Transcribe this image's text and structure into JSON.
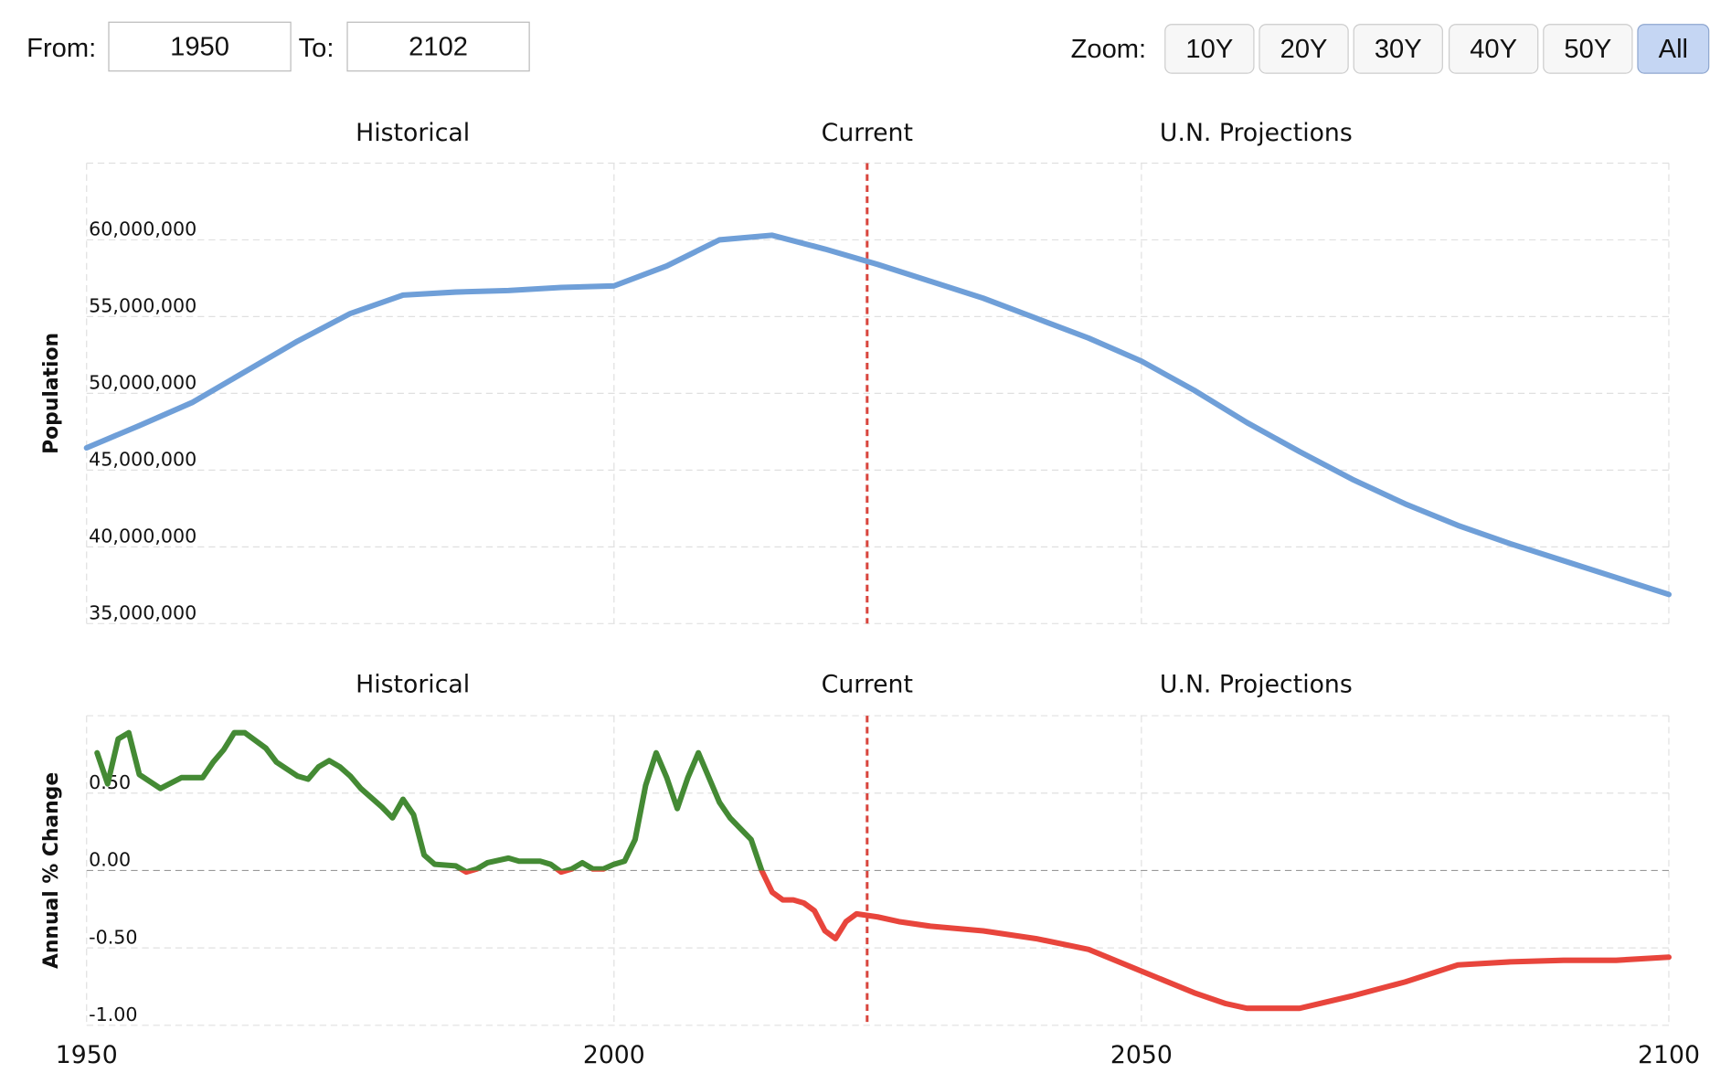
{
  "controls": {
    "from_label": "From:",
    "from_value": "1950",
    "to_label": "To:",
    "to_value": "2102",
    "zoom_label": "Zoom:",
    "zoom_buttons": [
      "10Y",
      "20Y",
      "30Y",
      "40Y",
      "50Y",
      "All"
    ],
    "selected_zoom": 5
  },
  "chart_data": [
    {
      "type": "line",
      "ylabel": "Population",
      "annotations": [
        "Historical",
        "Current",
        "U.N. Projections"
      ],
      "current_year": 2024,
      "current_color": "#d9463e",
      "x": [
        1950,
        1955,
        1960,
        1965,
        1970,
        1975,
        1980,
        1985,
        1990,
        1995,
        2000,
        2005,
        2010,
        2015,
        2020,
        2025,
        2030,
        2035,
        2040,
        2045,
        2050,
        2055,
        2060,
        2065,
        2070,
        2075,
        2080,
        2085,
        2090,
        2095,
        2100
      ],
      "series": [
        {
          "name": "Population",
          "color": "#6f9fd8",
          "values": [
            46450000,
            47900000,
            49400000,
            51400000,
            53400000,
            55200000,
            56400000,
            56600000,
            56700000,
            56900000,
            57000000,
            58300000,
            60000000,
            60300000,
            59400000,
            58400000,
            57300000,
            56200000,
            54900000,
            53600000,
            52100000,
            50200000,
            48100000,
            46200000,
            44400000,
            42800000,
            41400000,
            40200000,
            39100000,
            38000000,
            36900000
          ]
        }
      ],
      "xlim": [
        1950,
        2100
      ],
      "xticks": [
        1950,
        2000,
        2050,
        2100
      ],
      "x_tick_labels": false,
      "ylim": [
        35000000,
        65000000
      ],
      "yticks": [
        {
          "value": 35000000,
          "label": "35,000,000"
        },
        {
          "value": 40000000,
          "label": "40,000,000"
        },
        {
          "value": 45000000,
          "label": "45,000,000"
        },
        {
          "value": 50000000,
          "label": "50,000,000"
        },
        {
          "value": 55000000,
          "label": "55,000,000"
        },
        {
          "value": 60000000,
          "label": "60,000,000"
        }
      ],
      "grid": true
    },
    {
      "type": "signed-line",
      "ylabel": "Annual % Change",
      "annotations": [
        "Historical",
        "Current",
        "U.N. Projections"
      ],
      "current_year": 2024,
      "current_color": "#d9463e",
      "x": [
        1951,
        1952,
        1953,
        1954,
        1955,
        1957,
        1959,
        1961,
        1962,
        1963,
        1964,
        1965,
        1967,
        1968,
        1970,
        1971,
        1972,
        1973,
        1974,
        1975,
        1976,
        1978,
        1979,
        1980,
        1981,
        1982,
        1983,
        1985,
        1986,
        1987,
        1988,
        1990,
        1991,
        1993,
        1994,
        1995,
        1996,
        1997,
        1998,
        1999,
        2000,
        2001,
        2002,
        2003,
        2004,
        2005,
        2006,
        2007,
        2008,
        2009,
        2010,
        2011,
        2012,
        2013,
        2014,
        2015,
        2016,
        2017,
        2018,
        2019,
        2020,
        2021,
        2022,
        2023,
        2025,
        2027,
        2030,
        2035,
        2040,
        2045,
        2050,
        2055,
        2058,
        2060,
        2065,
        2070,
        2075,
        2080,
        2085,
        2090,
        2095,
        2100
      ],
      "series": [
        {
          "name": "Annual % Change",
          "positive_color": "#448a34",
          "negative_color": "#e8453c",
          "values": [
            0.76,
            0.56,
            0.85,
            0.89,
            0.62,
            0.53,
            0.6,
            0.6,
            0.7,
            0.78,
            0.89,
            0.89,
            0.79,
            0.7,
            0.61,
            0.59,
            0.67,
            0.71,
            0.67,
            0.61,
            0.53,
            0.41,
            0.34,
            0.46,
            0.36,
            0.1,
            0.04,
            0.03,
            -0.01,
            0.01,
            0.05,
            0.08,
            0.06,
            0.06,
            0.04,
            -0.01,
            0.01,
            0.05,
            0.01,
            0.01,
            0.04,
            0.06,
            0.2,
            0.55,
            0.76,
            0.6,
            0.4,
            0.6,
            0.76,
            0.6,
            0.44,
            0.34,
            0.27,
            0.2,
            0,
            -0.14,
            -0.19,
            -0.19,
            -0.21,
            -0.26,
            -0.39,
            -0.44,
            -0.33,
            -0.28,
            -0.3,
            -0.33,
            -0.36,
            -0.39,
            -0.44,
            -0.51,
            -0.65,
            -0.79,
            -0.86,
            -0.89,
            -0.89,
            -0.81,
            -0.72,
            -0.61,
            -0.59,
            -0.58,
            -0.58,
            -0.56
          ]
        }
      ],
      "xlim": [
        1950,
        2100
      ],
      "xticks": [
        1950,
        2000,
        2050,
        2100
      ],
      "x_tick_labels": true,
      "ylim": [
        -1,
        1
      ],
      "yticks": [
        {
          "value": -1,
          "label": "-1.00"
        },
        {
          "value": -0.5,
          "label": "-0.50"
        },
        {
          "value": 0,
          "label": "0.00"
        },
        {
          "value": 0.5,
          "label": "0.50"
        }
      ],
      "grid": true
    }
  ]
}
